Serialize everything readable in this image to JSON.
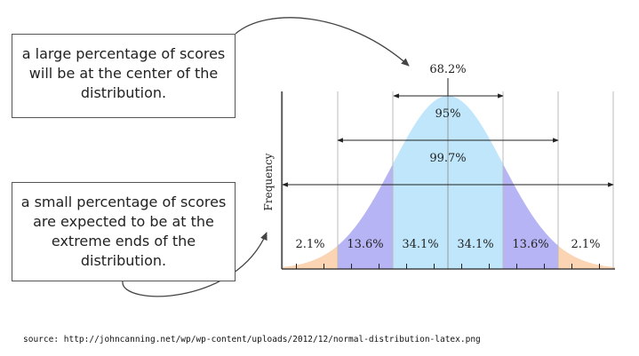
{
  "callouts": {
    "top": [
      "a large percentage of scores",
      "will be at the center of the",
      "distribution."
    ],
    "bottom": [
      "a small percentage of scores",
      "are expected to be at the",
      "extreme ends of the",
      "distribution."
    ]
  },
  "diagram": {
    "y_axis_label": "Frequency",
    "bands": [
      {
        "label": "68.2%"
      },
      {
        "label": "95%"
      },
      {
        "label": "99.7%"
      }
    ],
    "segments": [
      "2.1%",
      "13.6%",
      "34.1%",
      "34.1%",
      "13.6%",
      "2.1%"
    ],
    "colors": {
      "center": "#bfe6fb",
      "middle": "#b6b4f4",
      "outer": "#fbd4b4",
      "guide": "#bbbbbb",
      "line": "#222222"
    }
  },
  "source": "source: http://johncanning.net/wp/wp-content/uploads/2012/12/normal-distribution-latex.png"
}
